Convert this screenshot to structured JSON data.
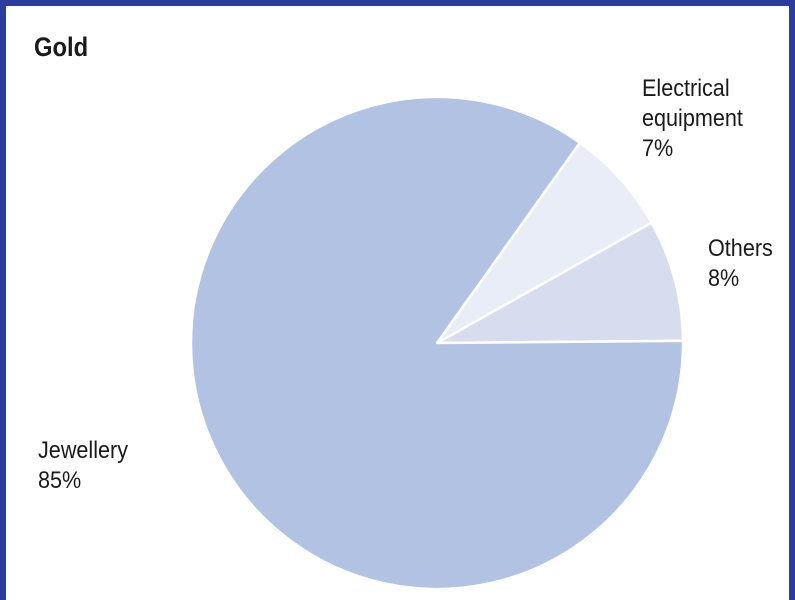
{
  "chart_data": {
    "type": "pie",
    "title": "Gold",
    "slices": [
      {
        "name": "Jewellery",
        "value": 85,
        "label": "85%",
        "color": "#b2c2e3"
      },
      {
        "name": "Electrical equipment",
        "value": 7,
        "label": "7%",
        "color": "#e9edf7"
      },
      {
        "name": "Others",
        "value": 8,
        "label": "8%",
        "color": "#d7dcef"
      }
    ],
    "labels": {
      "electrical_line1": "Electrical",
      "electrical_line2": "equipment"
    },
    "colors": {
      "frame": "#2b3c9e",
      "background": "#ffffff",
      "slice_border": "#ffffff"
    }
  }
}
